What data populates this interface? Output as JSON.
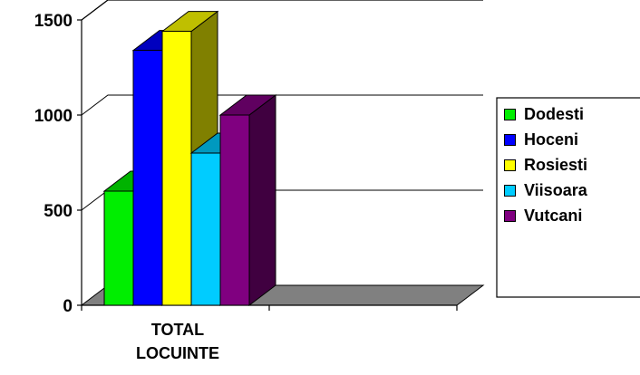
{
  "chart_data": {
    "type": "bar",
    "categories": [
      "TOTAL LOCUINTE"
    ],
    "category_lines": [
      "TOTAL",
      "LOCUINTE"
    ],
    "series": [
      {
        "name": "Dodesti",
        "values": [
          600
        ],
        "color": "#00ee00"
      },
      {
        "name": "Hoceni",
        "values": [
          1340
        ],
        "color": "#0000ff"
      },
      {
        "name": "Rosiesti",
        "values": [
          1440
        ],
        "color": "#ffff00"
      },
      {
        "name": "Viisoara",
        "values": [
          800
        ],
        "color": "#00ccff"
      },
      {
        "name": "Vutcani",
        "values": [
          1000
        ],
        "color": "#800080"
      }
    ],
    "yticks": [
      0,
      500,
      1000,
      1500
    ],
    "ylim": [
      0,
      1500
    ],
    "title": "",
    "xlabel": "",
    "ylabel": "",
    "legend_position": "right",
    "grid": true,
    "three_d": true
  }
}
